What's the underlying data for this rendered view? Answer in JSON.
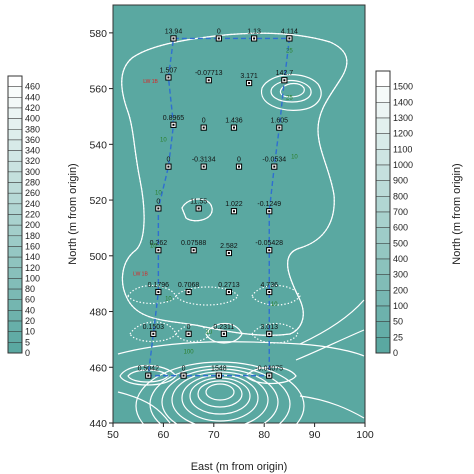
{
  "colors": {
    "map_fill": "#5aa8a1",
    "contour": "#ffffff",
    "flight_path": "#2f6fd1",
    "marker": "#000000",
    "contour_label": "#2a7f2a",
    "marker_label": "#d22222"
  },
  "chart_data": {
    "type": "contour-map",
    "xlabel": "East (m from origin)",
    "ylabel": "North (m from origin)",
    "xlim": [
      50,
      100
    ],
    "ylim": [
      440,
      590
    ],
    "xticks": [
      "50",
      "60",
      "70",
      "80",
      "90",
      "100"
    ],
    "yticks": [
      "440",
      "460",
      "480",
      "500",
      "520",
      "540",
      "560",
      "580"
    ],
    "grid": false,
    "points": [
      {
        "x": 62,
        "y": 578,
        "label": "13.94"
      },
      {
        "x": 71,
        "y": 578,
        "label": "0"
      },
      {
        "x": 78,
        "y": 578,
        "label": "1.13"
      },
      {
        "x": 85,
        "y": 578,
        "label": "4.114"
      },
      {
        "x": 61,
        "y": 564,
        "label": "1.507"
      },
      {
        "x": 69,
        "y": 563,
        "label": "-0.07713"
      },
      {
        "x": 77,
        "y": 562,
        "label": "3.171"
      },
      {
        "x": 84,
        "y": 563,
        "label": "142.7"
      },
      {
        "x": 62,
        "y": 547,
        "label": "0.8965"
      },
      {
        "x": 68,
        "y": 546,
        "label": "0"
      },
      {
        "x": 74,
        "y": 546,
        "label": "1.436"
      },
      {
        "x": 83,
        "y": 546,
        "label": "1.605"
      },
      {
        "x": 61,
        "y": 532,
        "label": "0"
      },
      {
        "x": 68,
        "y": 532,
        "label": "-0.3134"
      },
      {
        "x": 75,
        "y": 532,
        "label": "0"
      },
      {
        "x": 82,
        "y": 532,
        "label": "-0.0534"
      },
      {
        "x": 59,
        "y": 517,
        "label": "0"
      },
      {
        "x": 67,
        "y": 517,
        "label": "11.55"
      },
      {
        "x": 74,
        "y": 516,
        "label": "1.022"
      },
      {
        "x": 81,
        "y": 516,
        "label": "-0.1249"
      },
      {
        "x": 59,
        "y": 502,
        "label": "0.262"
      },
      {
        "x": 66,
        "y": 502,
        "label": "0.07588"
      },
      {
        "x": 73,
        "y": 501,
        "label": "2.582"
      },
      {
        "x": 81,
        "y": 502,
        "label": "-0.05428"
      },
      {
        "x": 59,
        "y": 487,
        "label": "0.1796"
      },
      {
        "x": 65,
        "y": 487,
        "label": "0.7068"
      },
      {
        "x": 73,
        "y": 487,
        "label": "0.2713"
      },
      {
        "x": 81,
        "y": 487,
        "label": "4.736"
      },
      {
        "x": 58,
        "y": 472,
        "label": "0.1503"
      },
      {
        "x": 65,
        "y": 472,
        "label": "0"
      },
      {
        "x": 72,
        "y": 472,
        "label": "0.2311"
      },
      {
        "x": 81,
        "y": 472,
        "label": "3.013"
      },
      {
        "x": 57,
        "y": 457,
        "label": "0.5042"
      },
      {
        "x": 64,
        "y": 457,
        "label": "0"
      },
      {
        "x": 71,
        "y": 457,
        "label": "1548"
      },
      {
        "x": 81,
        "y": 457,
        "label": "-0.04075"
      }
    ],
    "contour_labels": [
      {
        "x": 85,
        "y": 573,
        "text": "25"
      },
      {
        "x": 85,
        "y": 556,
        "text": "25"
      },
      {
        "x": 86,
        "y": 535,
        "text": "10"
      },
      {
        "x": 60,
        "y": 541,
        "text": "10"
      },
      {
        "x": 59,
        "y": 522,
        "text": "10"
      },
      {
        "x": 58,
        "y": 503,
        "text": "10"
      },
      {
        "x": 61,
        "y": 484,
        "text": "10"
      },
      {
        "x": 82,
        "y": 482,
        "text": "10"
      },
      {
        "x": 65,
        "y": 465,
        "text": "100"
      },
      {
        "x": 69,
        "y": 472,
        "text": "10"
      }
    ],
    "marker_labels": [
      {
        "x": 56,
        "y": 562,
        "text": "LW 1B"
      },
      {
        "x": 54,
        "y": 493,
        "text": "LW 1B"
      }
    ],
    "left_colorbar": {
      "ticks": [
        "460",
        "440",
        "420",
        "400",
        "380",
        "360",
        "340",
        "320",
        "300",
        "280",
        "260",
        "240",
        "220",
        "200",
        "180",
        "160",
        "140",
        "120",
        "100",
        "80",
        "60",
        "40",
        "20",
        "10",
        "5",
        "0"
      ]
    },
    "right_colorbar": {
      "ticks": [
        "1500",
        "1400",
        "1300",
        "1200",
        "1100",
        "1000",
        "900",
        "800",
        "700",
        "600",
        "500",
        "400",
        "300",
        "200",
        "100",
        "50",
        "25",
        "0"
      ]
    }
  }
}
